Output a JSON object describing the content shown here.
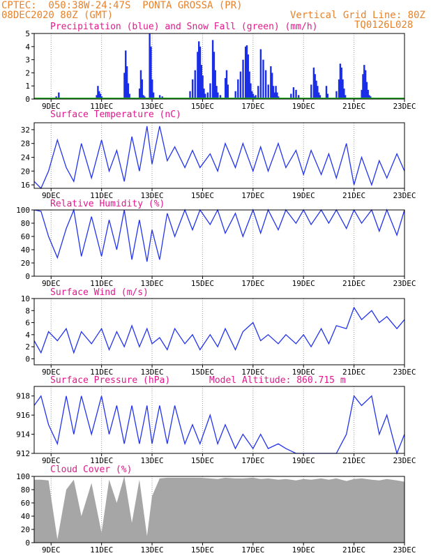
{
  "header": {
    "line1_left": "CPTEC:  050:38W-24:47S  PONTA GROSSA (PR)",
    "line2_left": "08DEC2020 80Z (GMT)",
    "line2_right": "Vertical Grid Line: 80Z",
    "line3_right": "TQ0126L028"
  },
  "colors": {
    "header": "#e8822a",
    "title": "#e0188c",
    "line": "#2233ee",
    "precip": "#1a2ee8",
    "snow": "#22aa22",
    "cloud": "#a6a6a6"
  },
  "x_ticks": [
    "9DEC",
    "11DEC",
    "13DEC",
    "15DEC",
    "17DEC",
    "19DEC",
    "21DEC",
    "23DEC"
  ],
  "chart_data": [
    {
      "id": "precip",
      "type": "bar",
      "title": "Precipitation (blue) and Snow Fall (green) (mm/h)",
      "ylim": [
        0,
        5
      ],
      "yticks": [
        0,
        1,
        2,
        3,
        4,
        5
      ],
      "x_range_days": [
        8.33,
        23.0
      ],
      "series": [
        {
          "name": "Precipitation",
          "x": [
            9.2,
            9.3,
            10.8,
            10.85,
            10.9,
            10.95,
            11.0,
            11.9,
            11.95,
            12.0,
            12.05,
            12.1,
            12.5,
            12.55,
            12.6,
            12.65,
            12.7,
            12.9,
            12.95,
            13.0,
            13.05,
            13.3,
            13.4,
            14.5,
            14.6,
            14.7,
            14.8,
            14.85,
            14.9,
            14.95,
            15.0,
            15.05,
            15.1,
            15.2,
            15.3,
            15.4,
            15.45,
            15.5,
            15.55,
            15.6,
            15.7,
            15.9,
            15.95,
            16.0,
            16.3,
            16.4,
            16.5,
            16.6,
            16.7,
            16.75,
            16.8,
            16.85,
            16.9,
            16.95,
            17.0,
            17.05,
            17.1,
            17.2,
            17.3,
            17.4,
            17.5,
            17.6,
            17.7,
            17.75,
            17.8,
            17.85,
            17.9,
            17.95,
            18.0,
            18.5,
            18.6,
            18.7,
            18.8,
            19.3,
            19.4,
            19.45,
            19.5,
            19.55,
            19.6,
            19.65,
            19.9,
            19.95,
            20.3,
            20.4,
            20.45,
            20.5,
            20.55,
            20.6,
            20.65,
            21.3,
            21.35,
            21.4,
            21.45,
            21.5,
            21.55,
            21.6,
            21.65
          ],
          "values": [
            0.2,
            0.5,
            0.3,
            1.0,
            0.6,
            0.4,
            0.2,
            2.0,
            3.7,
            2.5,
            1.2,
            0.4,
            0.8,
            2.2,
            1.5,
            0.3,
            0.2,
            5.0,
            4.0,
            1.5,
            0.5,
            0.3,
            0.2,
            0.6,
            1.5,
            2.2,
            3.6,
            4.4,
            4.0,
            2.6,
            1.8,
            0.8,
            0.4,
            0.5,
            1.2,
            4.5,
            3.6,
            2.2,
            1.0,
            0.5,
            0.3,
            1.6,
            2.2,
            1.1,
            0.6,
            1.5,
            2.1,
            3.0,
            4.0,
            4.1,
            3.4,
            2.1,
            1.2,
            0.6,
            0.4,
            0.2,
            0.3,
            1.0,
            3.8,
            3.0,
            2.2,
            1.1,
            2.5,
            2.0,
            1.0,
            0.5,
            1.0,
            0.5,
            0.2,
            0.4,
            0.9,
            0.7,
            0.3,
            1.1,
            2.4,
            1.9,
            1.4,
            1.0,
            0.5,
            0.3,
            1.0,
            0.4,
            0.6,
            1.5,
            2.7,
            2.4,
            1.5,
            0.8,
            0.3,
            0.7,
            1.9,
            2.6,
            2.2,
            1.3,
            0.7,
            0.3,
            0.2
          ]
        },
        {
          "name": "Snow Fall",
          "values": "0 throughout"
        }
      ]
    },
    {
      "id": "temp",
      "type": "line",
      "title": "Surface Temperature (nC)",
      "ylim": [
        15,
        34
      ],
      "yticks": [
        16,
        20,
        24,
        28,
        32
      ],
      "series": [
        {
          "name": "Temperature",
          "x": [
            8.33,
            8.6,
            8.9,
            9.25,
            9.6,
            9.9,
            10.2,
            10.6,
            11.0,
            11.3,
            11.6,
            11.9,
            12.2,
            12.5,
            12.8,
            13.0,
            13.3,
            13.6,
            13.9,
            14.3,
            14.6,
            14.9,
            15.3,
            15.6,
            15.9,
            16.3,
            16.6,
            17.0,
            17.3,
            17.6,
            18.0,
            18.3,
            18.7,
            19.0,
            19.3,
            19.7,
            20.0,
            20.3,
            20.7,
            21.0,
            21.3,
            21.7,
            22.0,
            22.3,
            22.7,
            23.0
          ],
          "values": [
            17,
            15,
            20,
            29,
            21,
            17,
            28,
            18,
            29,
            20,
            26,
            17,
            30,
            20,
            33,
            22,
            33,
            23,
            27,
            21,
            26,
            21,
            25,
            20,
            28,
            21,
            28,
            20,
            27,
            20,
            28,
            21,
            26,
            19,
            26,
            19,
            25,
            18,
            28,
            16,
            24,
            16,
            23,
            18,
            25,
            20
          ]
        }
      ]
    },
    {
      "id": "rh",
      "type": "line",
      "title": "Relative Humidity (%)",
      "ylim": [
        0,
        100
      ],
      "yticks": [
        0,
        20,
        40,
        60,
        80,
        100
      ],
      "series": [
        {
          "name": "Relative Humidity",
          "x": [
            8.33,
            8.6,
            8.9,
            9.25,
            9.6,
            9.9,
            10.2,
            10.6,
            11.0,
            11.3,
            11.6,
            11.9,
            12.2,
            12.5,
            12.8,
            13.0,
            13.3,
            13.6,
            13.9,
            14.3,
            14.6,
            14.9,
            15.3,
            15.6,
            15.9,
            16.3,
            16.6,
            17.0,
            17.3,
            17.6,
            18.0,
            18.3,
            18.7,
            19.0,
            19.3,
            19.7,
            20.0,
            20.3,
            20.7,
            21.0,
            21.3,
            21.7,
            22.0,
            22.3,
            22.7,
            23.0
          ],
          "values": [
            100,
            98,
            60,
            28,
            72,
            100,
            30,
            90,
            30,
            85,
            40,
            100,
            25,
            85,
            22,
            70,
            25,
            95,
            60,
            100,
            70,
            100,
            78,
            100,
            65,
            95,
            60,
            100,
            65,
            100,
            70,
            100,
            80,
            100,
            78,
            100,
            80,
            100,
            72,
            100,
            80,
            100,
            68,
            100,
            62,
            100
          ]
        }
      ]
    },
    {
      "id": "wind",
      "type": "line",
      "title": "Surface Wind (m/s)",
      "ylim": [
        -1,
        10
      ],
      "yticks": [
        0,
        2,
        4,
        6,
        8,
        10
      ],
      "series": [
        {
          "name": "Wind Speed",
          "x": [
            8.33,
            8.6,
            8.9,
            9.25,
            9.6,
            9.9,
            10.2,
            10.6,
            11.0,
            11.3,
            11.6,
            11.9,
            12.2,
            12.5,
            12.8,
            13.0,
            13.3,
            13.6,
            13.9,
            14.3,
            14.6,
            14.9,
            15.3,
            15.6,
            15.9,
            16.3,
            16.6,
            17.0,
            17.3,
            17.6,
            18.0,
            18.3,
            18.7,
            19.0,
            19.3,
            19.7,
            20.0,
            20.3,
            20.7,
            21.0,
            21.3,
            21.7,
            22.0,
            22.3,
            22.7,
            23.0
          ],
          "values": [
            3,
            1,
            4.5,
            3,
            5,
            1,
            4.5,
            2.5,
            5,
            1.5,
            4.5,
            2,
            5.5,
            2,
            5,
            2.5,
            3.5,
            1.5,
            5,
            2.5,
            4,
            1.5,
            4,
            2,
            5,
            1.5,
            4.5,
            6,
            3,
            4,
            2.5,
            4,
            2.5,
            4,
            2,
            5,
            2.5,
            5.5,
            5,
            8.5,
            6.5,
            8,
            6,
            7,
            5,
            6.5
          ]
        }
      ]
    },
    {
      "id": "pres",
      "type": "line",
      "title": "Surface Pressure (hPa)",
      "annotation": "Model Altitude: 860.715 m",
      "ylim": [
        912,
        919
      ],
      "yticks": [
        912,
        914,
        916,
        918
      ],
      "series": [
        {
          "name": "Pressure",
          "x": [
            8.33,
            8.6,
            8.9,
            9.25,
            9.6,
            9.9,
            10.2,
            10.6,
            11.0,
            11.3,
            11.6,
            11.9,
            12.2,
            12.5,
            12.8,
            13.0,
            13.3,
            13.6,
            13.9,
            14.3,
            14.6,
            14.9,
            15.3,
            15.6,
            15.9,
            16.3,
            16.6,
            17.0,
            17.3,
            17.6,
            18.0,
            18.3,
            18.7,
            19.0,
            19.3,
            19.7,
            20.0,
            20.3,
            20.7,
            21.0,
            21.3,
            21.7,
            22.0,
            22.3,
            22.7,
            23.0
          ],
          "values": [
            917,
            918,
            915,
            913,
            918,
            914,
            918,
            914,
            918,
            914,
            917,
            913,
            917,
            913,
            917,
            913,
            917,
            913,
            917,
            913,
            915,
            913,
            916,
            913,
            915,
            912.5,
            914,
            912.5,
            914,
            912.5,
            913,
            912.5,
            912,
            912,
            912,
            912,
            912,
            912,
            914,
            918,
            917,
            918,
            914,
            916,
            912,
            914
          ]
        }
      ]
    },
    {
      "id": "cloud",
      "type": "area",
      "title": "Cloud Cover (%)",
      "ylim": [
        0,
        100
      ],
      "yticks": [
        0,
        20,
        40,
        60,
        80,
        100
      ],
      "series": [
        {
          "name": "Cloud Cover",
          "x": [
            8.33,
            8.6,
            8.9,
            9.25,
            9.6,
            9.9,
            10.2,
            10.6,
            11.0,
            11.3,
            11.6,
            11.9,
            12.2,
            12.5,
            12.8,
            13.0,
            13.3,
            13.6,
            13.9,
            14.3,
            14.6,
            14.9,
            15.3,
            15.6,
            15.9,
            16.3,
            16.6,
            17.0,
            17.3,
            17.6,
            18.0,
            18.3,
            18.7,
            19.0,
            19.3,
            19.7,
            20.0,
            20.3,
            20.7,
            21.0,
            21.3,
            21.7,
            22.0,
            22.3,
            22.7,
            23.0
          ],
          "values": [
            95,
            95,
            94,
            5,
            80,
            95,
            40,
            90,
            15,
            95,
            60,
            100,
            30,
            95,
            10,
            70,
            97,
            98,
            98,
            98,
            98,
            98,
            97,
            96,
            98,
            97,
            97,
            98,
            96,
            97,
            95,
            96,
            94,
            96,
            95,
            97,
            95,
            97,
            93,
            96,
            97,
            95,
            94,
            96,
            94,
            92
          ]
        }
      ]
    }
  ]
}
